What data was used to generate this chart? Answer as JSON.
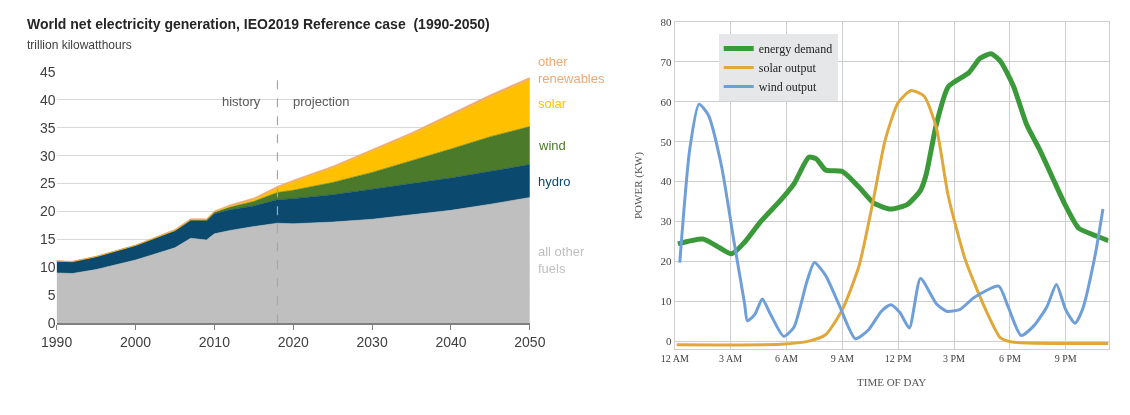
{
  "chart_data": [
    {
      "type": "area",
      "stacked": true,
      "title": "World net electricity generation, IEO2019 Reference case  (1990-2050)",
      "ylabel": "trillion kilowatthours",
      "x": [
        1990,
        1992,
        1995,
        2000,
        2005,
        2007,
        2009,
        2010,
        2012,
        2015,
        2018,
        2020,
        2025,
        2030,
        2035,
        2040,
        2045,
        2050
      ],
      "series": [
        {
          "name": "all other fuels",
          "color": "#bfbfbf",
          "values": [
            9,
            8.9,
            9.6,
            11.3,
            13.5,
            15.2,
            14.9,
            16,
            16.6,
            17.3,
            17.9,
            17.8,
            18.1,
            18.6,
            19.4,
            20.2,
            21.3,
            22.5
          ]
        },
        {
          "name": "hydro",
          "color": "#0b4a6e",
          "values": [
            2.1,
            2.1,
            2.3,
            2.6,
            3.0,
            3.2,
            3.4,
            3.6,
            3.7,
            3.7,
            4.2,
            4.5,
            4.9,
            5.4,
            5.6,
            5.8,
            5.9,
            5.9
          ]
        },
        {
          "name": "wind",
          "color": "#4b7a2a",
          "values": [
            0,
            0,
            0,
            0,
            0.1,
            0.1,
            0.2,
            0.3,
            0.5,
            0.8,
            1.3,
            1.5,
            2.2,
            3.0,
            4.1,
            5.2,
            6.2,
            6.8
          ]
        },
        {
          "name": "solar",
          "color": "#ffc000",
          "values": [
            0,
            0,
            0,
            0,
            0,
            0,
            0,
            0,
            0.1,
            0.3,
            0.8,
            1.5,
            2.6,
            3.8,
            4.7,
            5.9,
            7.1,
            8.4
          ]
        },
        {
          "name": "other renewables",
          "color": "#f0a870",
          "values": [
            0.1,
            0.1,
            0.1,
            0.1,
            0.2,
            0.2,
            0.2,
            0.2,
            0.3,
            0.3,
            0.3,
            0.3,
            0.3,
            0.3,
            0.3,
            0.4,
            0.4,
            0.4
          ]
        }
      ],
      "xlim": [
        1990,
        2050
      ],
      "xticks": [
        1990,
        2000,
        2010,
        2020,
        2030,
        2040,
        2050
      ],
      "ylim": [
        0,
        45
      ],
      "yticks": [
        0,
        5,
        10,
        15,
        20,
        25,
        30,
        35,
        40,
        45
      ],
      "grid": "y",
      "legend": false,
      "ref_lines": [
        {
          "axis": "x",
          "value": 2018,
          "color": "#a6a6a6",
          "line_style": "dashed"
        }
      ],
      "annotations": [
        "history",
        "projection"
      ]
    },
    {
      "type": "line",
      "xlabel": "TIME OF DAY",
      "ylabel": "POWER (KW)",
      "series": [
        {
          "name": "energy demand",
          "color": "#3a9a3a",
          "x": [
            "2000-01-01T00:10",
            "2000-01-01T01:30",
            "2000-01-01T02:12",
            "2000-01-01T03:03",
            "2000-01-01T03:45",
            "2000-01-01T04:36",
            "2000-01-01T05:42",
            "2000-01-01T06:24",
            "2000-01-01T07:12",
            "2000-01-01T07:36",
            "2000-01-01T08:06",
            "2000-01-01T09:00",
            "2000-01-01T09:54",
            "2000-01-01T10:42",
            "2000-01-01T11:36",
            "2000-01-01T12:30",
            "2000-01-01T13:12",
            "2000-01-01T13:30",
            "2000-01-01T14:03",
            "2000-01-01T14:42",
            "2000-01-01T15:48",
            "2000-01-01T16:24",
            "2000-01-01T17:00",
            "2000-01-01T17:30",
            "2000-01-01T18:12",
            "2000-01-01T18:54",
            "2000-01-01T19:36",
            "2000-01-01T20:18",
            "2000-01-01T21:00",
            "2000-01-01T21:42",
            "2000-01-01T22:24",
            "2000-01-01T23:18"
          ],
          "values": [
            24.4,
            25.6,
            24,
            21.9,
            24.8,
            29.9,
            35.4,
            39.4,
            46.1,
            45.7,
            42.9,
            42.5,
            38.6,
            34.6,
            33.1,
            34.3,
            37.8,
            41.7,
            54.3,
            63.8,
            67.3,
            70.9,
            72.0,
            70.1,
            63.8,
            54.3,
            48,
            40.9,
            33.9,
            28.3,
            26.8,
            25.2
          ]
        },
        {
          "name": "solar output",
          "color": "#e0a83a",
          "x": [
            "2000-01-01T00:06",
            "2000-01-01T05:42",
            "2000-01-01T07:12",
            "2000-01-01T08:06",
            "2000-01-01T09:00",
            "2000-01-01T09:54",
            "2000-01-01T10:42",
            "2000-01-01T11:18",
            "2000-01-01T12:00",
            "2000-01-01T12:42",
            "2000-01-01T13:24",
            "2000-01-01T14:03",
            "2000-01-01T14:42",
            "2000-01-01T15:36",
            "2000-01-01T16:42",
            "2000-01-01T17:30",
            "2000-01-01T18:06",
            "2000-01-01T23:18"
          ],
          "values": [
            -0.9,
            -0.8,
            0,
            1.6,
            7.9,
            18.9,
            36.2,
            50.4,
            59.8,
            62.8,
            61.4,
            53.5,
            36.2,
            20.5,
            7.9,
            0.8,
            -0.2,
            -0.6
          ]
        },
        {
          "name": "wind output",
          "color": "#6f9fd8",
          "x": [
            "2000-01-01T00:16",
            "2000-01-01T00:48",
            "2000-01-01T01:18",
            "2000-01-01T01:48",
            "2000-01-01T02:30",
            "2000-01-01T03:12",
            "2000-01-01T03:45",
            "2000-01-01T03:54",
            "2000-01-01T04:18",
            "2000-01-01T04:42",
            "2000-01-01T05:06",
            "2000-01-01T05:51",
            "2000-01-01T06:24",
            "2000-01-01T07:06",
            "2000-01-01T07:30",
            "2000-01-01T08:06",
            "2000-01-01T08:48",
            "2000-01-01T09:42",
            "2000-01-01T10:24",
            "2000-01-01T11:06",
            "2000-01-01T11:36",
            "2000-01-01T12:06",
            "2000-01-01T12:36",
            "2000-01-01T13:12",
            "2000-01-01T14:03",
            "2000-01-01T14:36",
            "2000-01-01T15:18",
            "2000-01-01T16:06",
            "2000-01-01T17:24",
            "2000-01-01T17:54",
            "2000-01-01T18:36",
            "2000-01-01T19:18",
            "2000-01-01T20:00",
            "2000-01-01T20:30",
            "2000-01-01T21:00",
            "2000-01-01T21:30",
            "2000-01-01T21:54",
            "2000-01-01T22:36",
            "2000-01-01T23:00"
          ],
          "values": [
            19.7,
            48,
            59.4,
            56.7,
            44.1,
            24.4,
            9.4,
            5.1,
            6.7,
            10.6,
            7.1,
            1.2,
            3.5,
            15,
            19.7,
            16.5,
            9.4,
            0.6,
            2.8,
            7.5,
            9.1,
            7.1,
            3.3,
            15.7,
            9.4,
            7.5,
            7.9,
            11,
            13.8,
            8.7,
            1.4,
            3.9,
            8.7,
            14.2,
            7.9,
            4.5,
            7.9,
            22,
            33.1
          ]
        }
      ],
      "xlim": [
        "2000-01-01T00:00",
        "2000-01-01T23:18"
      ],
      "xticks": [
        {
          "value": "2000-01-01T00:00",
          "label": "12 AM"
        },
        {
          "value": "2000-01-01T03:00",
          "label": "3 AM"
        },
        {
          "value": "2000-01-01T06:00",
          "label": "6 AM"
        },
        {
          "value": "2000-01-01T09:00",
          "label": "9 AM"
        },
        {
          "value": "2000-01-01T12:00",
          "label": "12 PM"
        },
        {
          "value": "2000-01-01T15:00",
          "label": "3 PM"
        },
        {
          "value": "2000-01-01T18:00",
          "label": "6 PM"
        },
        {
          "value": "2000-01-01T21:00",
          "label": "9 PM"
        }
      ],
      "ylim": [
        -2,
        80
      ],
      "yticks": [
        0,
        10,
        20,
        30,
        40,
        50,
        60,
        70,
        80
      ],
      "grid": true,
      "legend": "top left"
    }
  ]
}
